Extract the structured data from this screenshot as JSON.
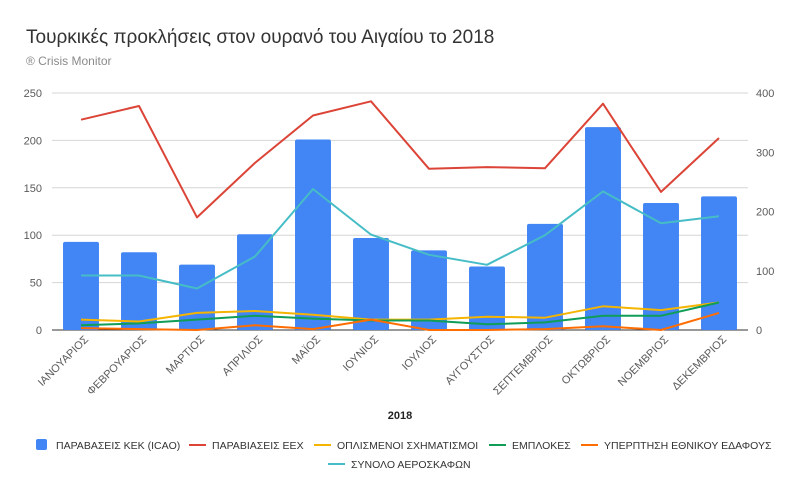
{
  "chart_data": {
    "type": "bar",
    "title": "Τουρκικές προκλήσεις στον ουρανό του Αιγαίου το 2018",
    "subtitle": "® Crisis Monitor",
    "xlabel": "2018",
    "categories": [
      "ΙΑΝΟΥΑΡΙΟΣ",
      "ΦΕΒΡΟΥΑΡΙΟΣ",
      "ΜΑΡΤΙΟΣ",
      "ΑΠΡΙΛΙΟΣ",
      "ΜΑΪΟΣ",
      "ΙΟΥΝΙΟΣ",
      "ΙΟΥΛΙΟΣ",
      "ΑΥΓΟΥΣΤΟΣ",
      "ΣΕΠΤΕΜΒΡΙΟΣ",
      "ΟΚΤΩΒΡΙΟΣ",
      "ΝΟΕΜΒΡΙΟΣ",
      "ΔΕΚΕΜΒΡΙΟΣ"
    ],
    "y_left": {
      "min": 0,
      "max": 250,
      "ticks": [
        "0",
        "50",
        "100",
        "150",
        "200",
        "250"
      ]
    },
    "y_right": {
      "min": 0,
      "max": 400,
      "ticks": [
        "0",
        "100",
        "200",
        "300",
        "400"
      ]
    },
    "grid": true,
    "legend_position": "bottom",
    "series": [
      {
        "name": "ΠΑΡΑΒΑΣΕΙΣ ΚΕΚ (ICAO)",
        "type": "bar",
        "axis": "left",
        "color": "#4285f4",
        "values": [
          93,
          82,
          69,
          101,
          201,
          97,
          84,
          67,
          112,
          214,
          134,
          141
        ]
      },
      {
        "name": "ΠΑΡΑΒΙΑΣΕΙΣ ΕΕΧ",
        "type": "line",
        "axis": "right",
        "color": "#db4437",
        "values": [
          355,
          378,
          190,
          282,
          362,
          386,
          272,
          275,
          273,
          382,
          233,
          324
        ]
      },
      {
        "name": "ΟΠΛΙΣΜΕΝΟΙ ΣΧΗΜΑΤΙΣΜΟΙ",
        "type": "line",
        "axis": "left",
        "color": "#f4b400",
        "values": [
          11,
          9,
          18,
          20,
          16,
          11,
          11,
          14,
          13,
          25,
          21,
          29
        ]
      },
      {
        "name": "ΕΜΠΛΟΚΕΣ",
        "type": "line",
        "axis": "left",
        "color": "#0f9d58",
        "values": [
          5,
          7,
          11,
          15,
          12,
          10,
          10,
          6,
          8,
          15,
          15,
          29
        ]
      },
      {
        "name": "ΥΠΕΡΠΤΗΣΗ ΕΘΝΙΚΟΥ ΕΔΑΦΟΥΣ",
        "type": "line",
        "axis": "left",
        "color": "#ff6d01",
        "values": [
          2,
          1,
          0,
          5,
          1,
          11,
          0,
          0,
          1,
          4,
          0,
          18
        ]
      },
      {
        "name": "ΣΥΝΟΛΟ ΑΕΡΟΣΚΑΦΩΝ",
        "type": "line",
        "axis": "right",
        "color": "#46bdc6",
        "values": [
          92,
          92,
          70,
          124,
          238,
          161,
          127,
          110,
          160,
          234,
          180,
          192
        ]
      }
    ]
  }
}
